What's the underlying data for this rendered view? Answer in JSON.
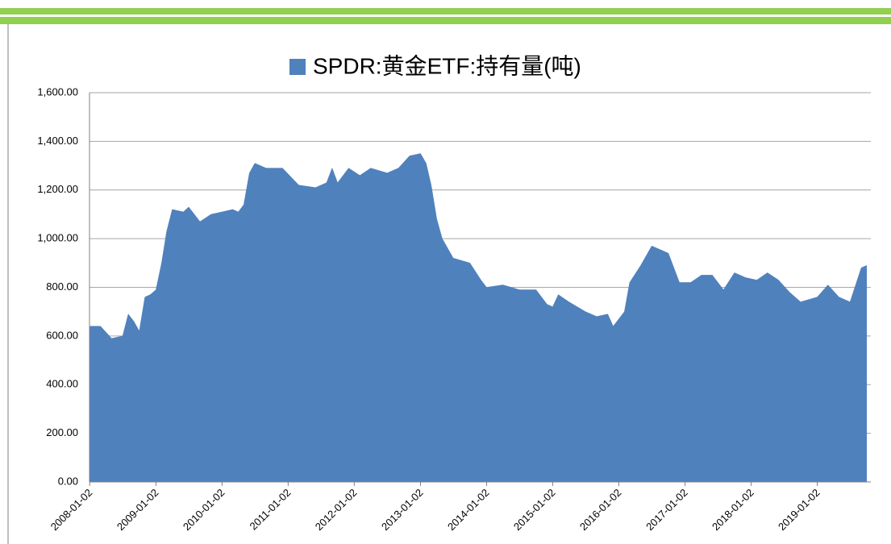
{
  "chart_data": {
    "type": "area",
    "series": [
      {
        "name": "SPDR:黄金ETF:持有量(吨)",
        "color": "#4f81bd",
        "values": [
          640,
          640,
          590,
          600,
          690,
          660,
          620,
          760,
          770,
          790,
          900,
          1030,
          1120,
          1110,
          1130,
          1070,
          1100,
          1110,
          1120,
          1110,
          1140,
          1270,
          1310,
          1290,
          1290,
          1220,
          1210,
          1230,
          1290,
          1230,
          1290,
          1260,
          1290,
          1270,
          1290,
          1340,
          1350,
          1310,
          1220,
          1080,
          1000,
          920,
          900,
          830,
          800,
          810,
          790,
          790,
          730,
          720,
          770,
          740,
          700,
          680,
          690,
          640,
          700,
          820,
          890,
          970,
          950,
          940,
          820,
          820,
          850,
          850,
          790,
          860,
          840,
          830,
          860,
          830,
          780,
          740,
          760,
          810,
          760,
          740,
          880,
          890
        ]
      }
    ],
    "x": [
      "2008-01-02",
      "2008-03-02",
      "2008-05-02",
      "2008-07-02",
      "2008-08-02",
      "2008-09-02",
      "2008-10-02",
      "2008-11-02",
      "2008-12-02",
      "2009-01-02",
      "2009-02-02",
      "2009-03-02",
      "2009-04-02",
      "2009-06-02",
      "2009-07-02",
      "2009-09-02",
      "2009-11-02",
      "2010-01-02",
      "2010-03-02",
      "2010-04-02",
      "2010-05-02",
      "2010-06-02",
      "2010-07-02",
      "2010-09-02",
      "2010-12-02",
      "2011-03-02",
      "2011-06-02",
      "2011-08-02",
      "2011-09-02",
      "2011-10-02",
      "2011-12-02",
      "2012-02-02",
      "2012-04-02",
      "2012-07-02",
      "2012-09-02",
      "2012-11-02",
      "2013-01-02",
      "2013-02-02",
      "2013-03-02",
      "2013-04-02",
      "2013-05-02",
      "2013-07-02",
      "2013-10-02",
      "2013-12-02",
      "2014-01-02",
      "2014-04-02",
      "2014-07-02",
      "2014-10-02",
      "2014-12-02",
      "2015-01-02",
      "2015-02-02",
      "2015-04-02",
      "2015-07-02",
      "2015-09-02",
      "2015-11-02",
      "2015-12-02",
      "2016-02-02",
      "2016-03-02",
      "2016-05-02",
      "2016-07-02",
      "2016-09-02",
      "2016-10-02",
      "2016-12-02",
      "2017-02-02",
      "2017-04-02",
      "2017-06-02",
      "2017-08-02",
      "2017-10-02",
      "2017-12-02",
      "2018-02-02",
      "2018-04-02",
      "2018-06-02",
      "2018-08-02",
      "2018-10-02",
      "2019-01-02",
      "2019-03-02",
      "2019-05-02",
      "2019-07-02",
      "2019-09-02",
      "2019-10-02"
    ],
    "xlim": [
      "2008-01-01",
      "2019-10-25"
    ],
    "xticks": [
      "2008-01-02",
      "2009-01-02",
      "2010-01-02",
      "2011-01-02",
      "2012-01-02",
      "2013-01-02",
      "2014-01-02",
      "2015-01-02",
      "2016-01-02",
      "2017-01-02",
      "2018-01-02",
      "2019-01-02"
    ],
    "ylim": [
      0,
      1600
    ],
    "yticks": [
      {
        "value": 0,
        "label": "0.00"
      },
      {
        "value": 200,
        "label": "200.00"
      },
      {
        "value": 400,
        "label": "400.00"
      },
      {
        "value": 600,
        "label": "600.00"
      },
      {
        "value": 800,
        "label": "800.00"
      },
      {
        "value": 1000,
        "label": "1,000.00"
      },
      {
        "value": 1200,
        "label": "1,200.00"
      },
      {
        "value": 1400,
        "label": "1,400.00"
      },
      {
        "value": 1600,
        "label": "1,600.00"
      }
    ],
    "grid": true,
    "legend": "top"
  }
}
